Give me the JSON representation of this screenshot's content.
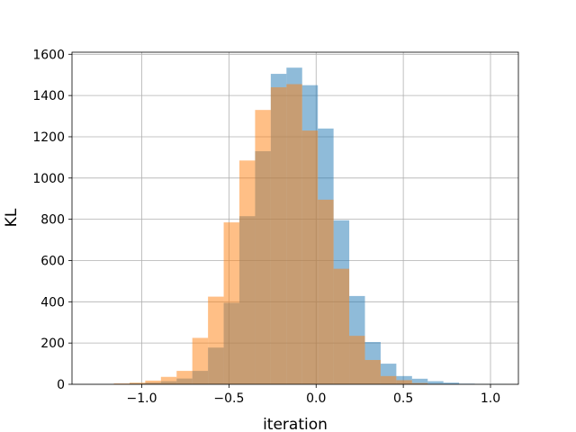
{
  "chart_data": {
    "type": "bar",
    "subtype": "overlaid-histogram",
    "title": "",
    "xlabel": "iteration",
    "ylabel": "KL",
    "xlim": [
      -1.4,
      1.16
    ],
    "ylim": [
      0,
      1610
    ],
    "grid": true,
    "legend": "none",
    "xticks": [
      -1.0,
      -0.5,
      0.0,
      0.5,
      1.0
    ],
    "xtick_labels": [
      "−1.0",
      "−0.5",
      "0.0",
      "0.5",
      "1.0"
    ],
    "yticks": [
      0,
      200,
      400,
      600,
      800,
      1000,
      1200,
      1400,
      1600
    ],
    "ytick_labels": [
      "0",
      "200",
      "400",
      "600",
      "800",
      "1000",
      "1200",
      "1400",
      "1600"
    ],
    "series": [
      {
        "color": "#1f77b4",
        "alpha": 0.5,
        "bins": [
          [
            -1.16,
            -1.07,
            2
          ],
          [
            -1.07,
            -0.98,
            4
          ],
          [
            -0.98,
            -0.89,
            8
          ],
          [
            -0.89,
            -0.8,
            15
          ],
          [
            -0.8,
            -0.71,
            28
          ],
          [
            -0.71,
            -0.62,
            65
          ],
          [
            -0.62,
            -0.53,
            178
          ],
          [
            -0.53,
            -0.44,
            395
          ],
          [
            -0.44,
            -0.35,
            815
          ],
          [
            -0.35,
            -0.26,
            1130
          ],
          [
            -0.26,
            -0.17,
            1505
          ],
          [
            -0.17,
            -0.08,
            1535
          ],
          [
            -0.08,
            0.01,
            1450
          ],
          [
            0.01,
            0.1,
            1240
          ],
          [
            0.1,
            0.19,
            795
          ],
          [
            0.19,
            0.28,
            428
          ],
          [
            0.28,
            0.37,
            205
          ],
          [
            0.37,
            0.46,
            100
          ],
          [
            0.46,
            0.55,
            40
          ],
          [
            0.55,
            0.64,
            27
          ],
          [
            0.64,
            0.73,
            15
          ],
          [
            0.73,
            0.82,
            8
          ],
          [
            0.82,
            0.91,
            3
          ],
          [
            0.91,
            1.0,
            1
          ],
          [
            1.0,
            1.09,
            1
          ]
        ]
      },
      {
        "color": "#ff7f0e",
        "alpha": 0.5,
        "bins": [
          [
            -1.16,
            -1.07,
            4
          ],
          [
            -1.07,
            -0.98,
            8
          ],
          [
            -0.98,
            -0.89,
            18
          ],
          [
            -0.89,
            -0.8,
            36
          ],
          [
            -0.8,
            -0.71,
            65
          ],
          [
            -0.71,
            -0.62,
            225
          ],
          [
            -0.62,
            -0.53,
            425
          ],
          [
            -0.53,
            -0.44,
            785
          ],
          [
            -0.44,
            -0.35,
            1085
          ],
          [
            -0.35,
            -0.26,
            1330
          ],
          [
            -0.26,
            -0.17,
            1440
          ],
          [
            -0.17,
            -0.08,
            1455
          ],
          [
            -0.08,
            0.01,
            1230
          ],
          [
            0.01,
            0.1,
            895
          ],
          [
            0.1,
            0.19,
            560
          ],
          [
            0.19,
            0.28,
            235
          ],
          [
            0.28,
            0.37,
            118
          ],
          [
            0.37,
            0.46,
            40
          ],
          [
            0.46,
            0.55,
            20
          ],
          [
            0.55,
            0.64,
            6
          ],
          [
            0.64,
            0.73,
            2
          ]
        ]
      }
    ]
  }
}
